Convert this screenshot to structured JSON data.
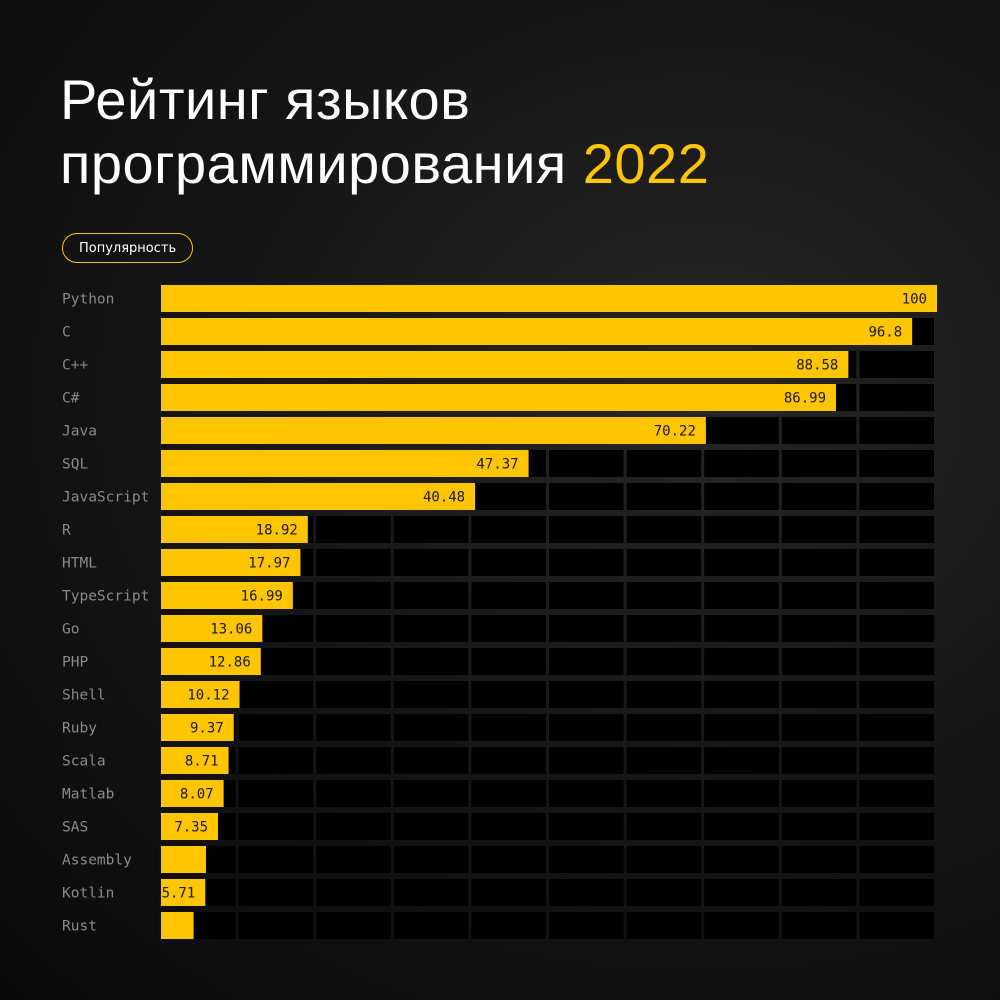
{
  "header": {
    "title_line1": "Рейтинг языков",
    "title_line2": "программирования",
    "title_year": "2022"
  },
  "badge": {
    "label": "Популярность"
  },
  "colors": {
    "accent": "#ffc500",
    "background": "#111111",
    "grid_cell": "#000000",
    "category_text": "#8a8a8a",
    "value_text": "#1a1a1a"
  },
  "chart_data": {
    "type": "bar",
    "orientation": "horizontal",
    "categories": [
      "Python",
      "C",
      "C++",
      "C#",
      "Java",
      "SQL",
      "JavaScript",
      "R",
      "HTML",
      "TypeScript",
      "Go",
      "PHP",
      "Shell",
      "Ruby",
      "Scala",
      "Matlab",
      "SAS",
      "Assembly",
      "Kotlin",
      "Rust"
    ],
    "values": [
      100,
      96.8,
      88.58,
      86.99,
      70.22,
      47.37,
      40.48,
      18.92,
      17.97,
      16.99,
      13.06,
      12.86,
      10.12,
      9.37,
      8.71,
      8.07,
      7.35,
      5.8,
      5.71,
      4.2
    ],
    "value_labels": [
      "100",
      "96.8",
      "88.58",
      "86.99",
      "70.22",
      "47.37",
      "40.48",
      "18.92",
      "17.97",
      "16.99",
      "13.06",
      "12.86",
      "10.12",
      "9.37",
      "8.71",
      "8.07",
      "7.35",
      "",
      "5.71",
      ""
    ],
    "title": "",
    "xlabel": "",
    "ylabel": "",
    "xlim": [
      0,
      100
    ],
    "grid": true,
    "legend": "none"
  }
}
